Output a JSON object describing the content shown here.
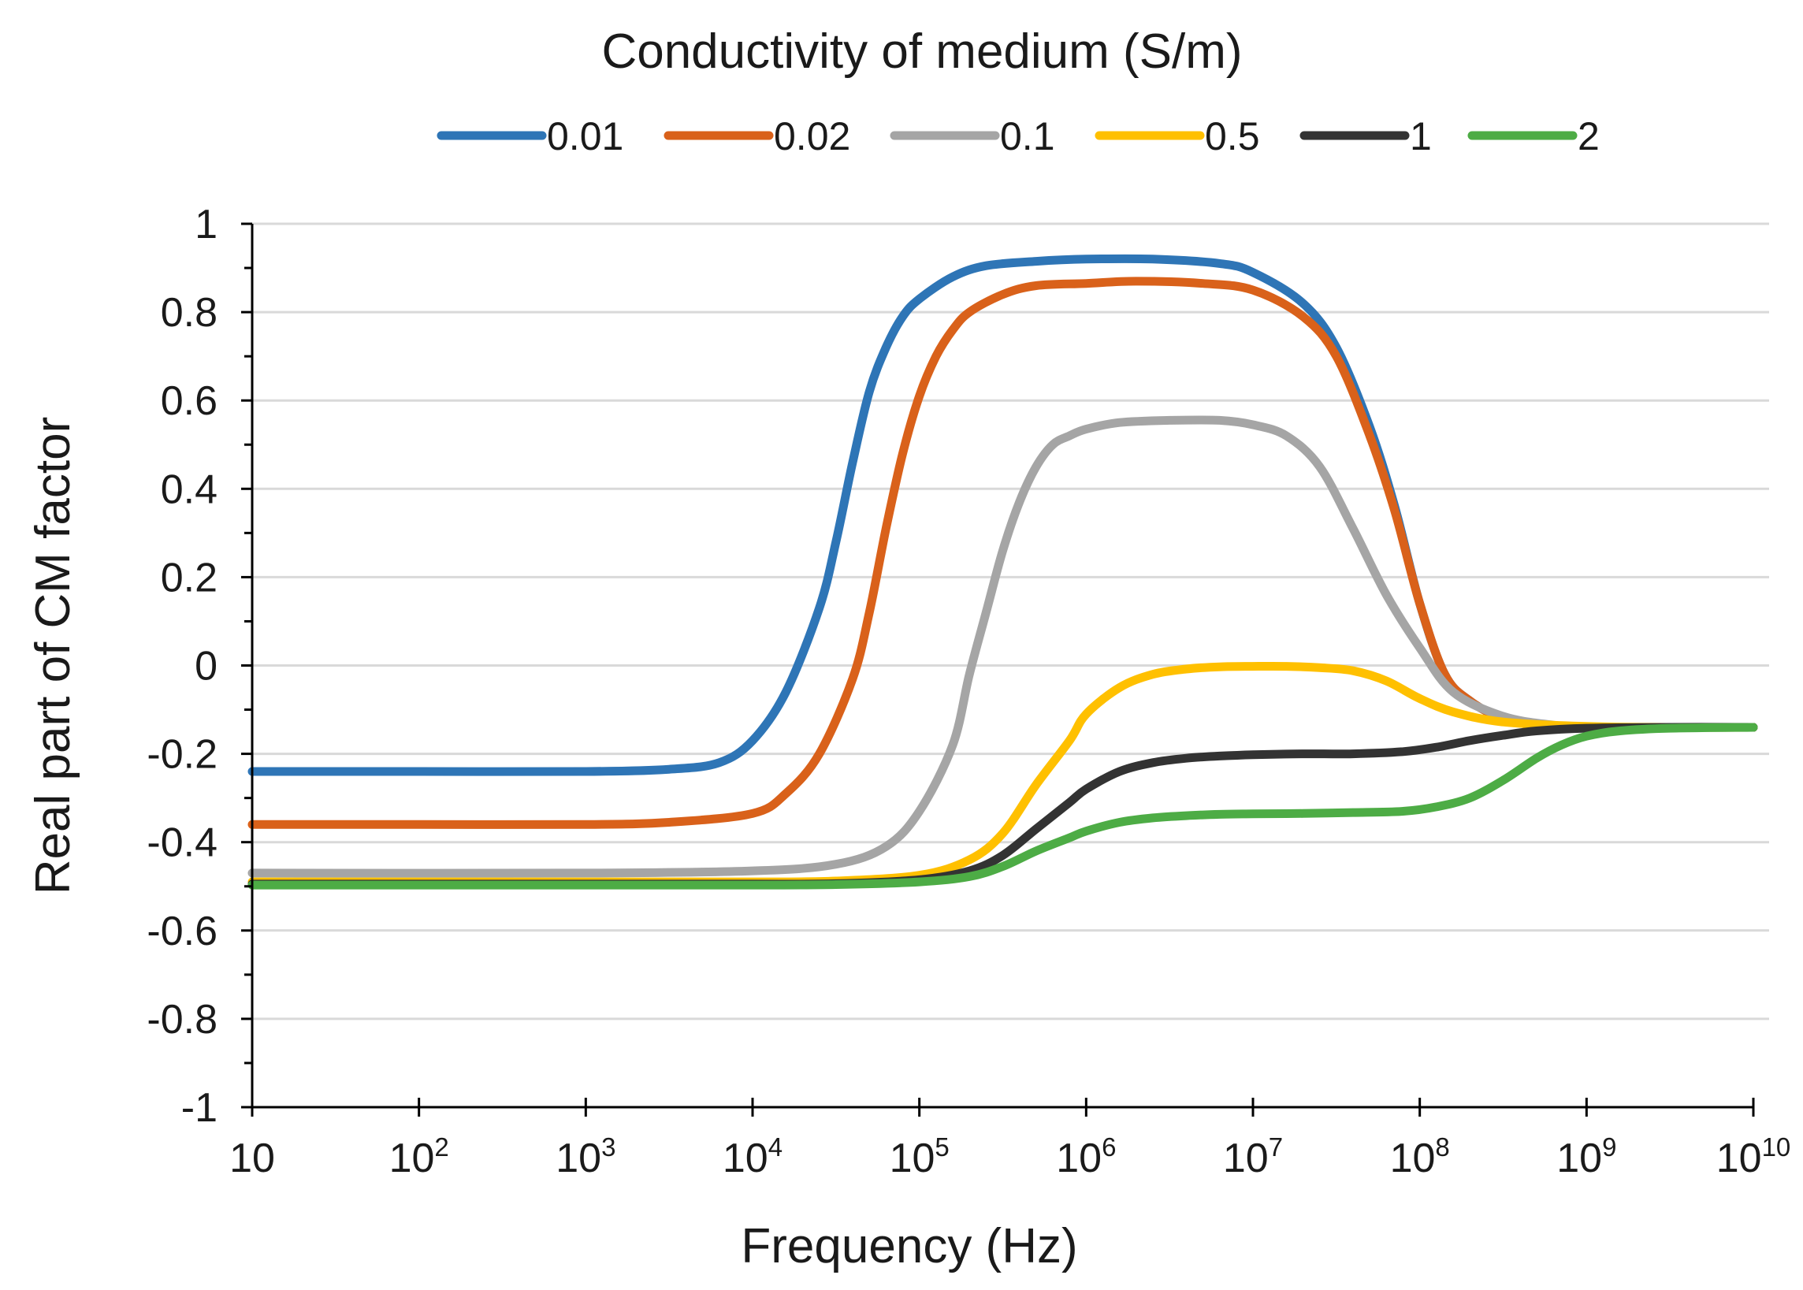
{
  "chart_data": {
    "type": "line",
    "legend_title": "Conductivity of medium (S/m)",
    "xlabel": "Frequency (Hz)",
    "ylabel": "Real part of CM factor",
    "x_scale": "log",
    "xlim_log10": [
      1,
      10
    ],
    "ylim": [
      -1,
      1
    ],
    "x_ticks": [
      {
        "base": "10",
        "exp": ""
      },
      {
        "base": "10",
        "exp": "2"
      },
      {
        "base": "10",
        "exp": "3"
      },
      {
        "base": "10",
        "exp": "4"
      },
      {
        "base": "10",
        "exp": "5"
      },
      {
        "base": "10",
        "exp": "6"
      },
      {
        "base": "10",
        "exp": "7"
      },
      {
        "base": "10",
        "exp": "8"
      },
      {
        "base": "10",
        "exp": "9"
      },
      {
        "base": "10",
        "exp": "10"
      }
    ],
    "y_ticks": [
      "1",
      "0.8",
      "0.6",
      "0.4",
      "0.2",
      "0",
      "-0.2",
      "-0.4",
      "-0.6",
      "-0.8",
      "-1"
    ],
    "y_tick_values": [
      1,
      0.8,
      0.6,
      0.4,
      0.2,
      0,
      -0.2,
      -0.4,
      -0.6,
      -0.8,
      -1
    ],
    "grid": "horizontal",
    "legend_position": "top",
    "series": [
      {
        "name": "0.01",
        "color": "#2E75B6",
        "log10_x": [
          1,
          2,
          3,
          3.5,
          3.8,
          4,
          4.2,
          4.4,
          4.5,
          4.6,
          4.7,
          4.8,
          4.9,
          5,
          5.2,
          5.4,
          5.7,
          6,
          6.4,
          6.8,
          7,
          7.3,
          7.5,
          7.7,
          7.85,
          8,
          8.15,
          8.3,
          8.5,
          8.7,
          9,
          9.5,
          10
        ],
        "values": [
          -0.24,
          -0.24,
          -0.24,
          -0.235,
          -0.22,
          -0.17,
          -0.06,
          0.13,
          0.28,
          0.46,
          0.62,
          0.72,
          0.79,
          0.83,
          0.88,
          0.905,
          0.915,
          0.92,
          0.92,
          0.91,
          0.89,
          0.82,
          0.72,
          0.54,
          0.36,
          0.14,
          -0.02,
          -0.08,
          -0.12,
          -0.135,
          -0.14,
          -0.14,
          -0.14
        ]
      },
      {
        "name": "0.02",
        "color": "#D9611A",
        "log10_x": [
          1,
          2,
          3,
          3.5,
          4,
          4.2,
          4.4,
          4.6,
          4.7,
          4.8,
          4.9,
          5,
          5.1,
          5.2,
          5.3,
          5.5,
          5.7,
          6,
          6.3,
          6.7,
          7,
          7.3,
          7.5,
          7.7,
          7.85,
          8,
          8.15,
          8.3,
          8.5,
          8.7,
          9,
          9.5,
          10
        ],
        "values": [
          -0.36,
          -0.36,
          -0.36,
          -0.355,
          -0.335,
          -0.29,
          -0.2,
          -0.03,
          0.12,
          0.31,
          0.48,
          0.61,
          0.7,
          0.76,
          0.8,
          0.84,
          0.86,
          0.865,
          0.87,
          0.865,
          0.85,
          0.79,
          0.7,
          0.52,
          0.35,
          0.14,
          -0.02,
          -0.08,
          -0.12,
          -0.135,
          -0.14,
          -0.14,
          -0.14
        ]
      },
      {
        "name": "0.1",
        "color": "#A5A5A5",
        "log10_x": [
          1,
          3,
          4,
          4.5,
          4.8,
          5,
          5.2,
          5.3,
          5.4,
          5.5,
          5.6,
          5.7,
          5.8,
          5.9,
          6,
          6.2,
          6.5,
          6.8,
          7,
          7.2,
          7.4,
          7.6,
          7.8,
          8,
          8.2,
          8.5,
          8.8,
          9,
          9.5,
          10
        ],
        "values": [
          -0.47,
          -0.47,
          -0.465,
          -0.45,
          -0.41,
          -0.33,
          -0.18,
          -0.02,
          0.12,
          0.26,
          0.37,
          0.45,
          0.5,
          0.52,
          0.535,
          0.55,
          0.555,
          0.555,
          0.545,
          0.52,
          0.45,
          0.31,
          0.16,
          0.04,
          -0.06,
          -0.115,
          -0.135,
          -0.14,
          -0.14,
          -0.14
        ]
      },
      {
        "name": "0.5",
        "color": "#FFC000",
        "log10_x": [
          1,
          3,
          4,
          4.5,
          5,
          5.3,
          5.5,
          5.7,
          5.9,
          6,
          6.2,
          6.4,
          6.6,
          6.8,
          7,
          7.2,
          7.4,
          7.6,
          7.8,
          8,
          8.2,
          8.5,
          9,
          9.5,
          10
        ],
        "values": [
          -0.49,
          -0.49,
          -0.49,
          -0.488,
          -0.475,
          -0.44,
          -0.38,
          -0.27,
          -0.17,
          -0.11,
          -0.05,
          -0.02,
          -0.008,
          -0.003,
          -0.002,
          -0.002,
          -0.005,
          -0.012,
          -0.035,
          -0.075,
          -0.105,
          -0.128,
          -0.138,
          -0.14,
          -0.14
        ]
      },
      {
        "name": "1",
        "color": "#333333",
        "log10_x": [
          1,
          3,
          4,
          4.5,
          5,
          5.3,
          5.5,
          5.7,
          5.9,
          6,
          6.2,
          6.4,
          6.6,
          6.8,
          7,
          7.3,
          7.6,
          7.9,
          8.1,
          8.3,
          8.5,
          8.7,
          9,
          9.5,
          10
        ],
        "values": [
          -0.495,
          -0.495,
          -0.495,
          -0.494,
          -0.485,
          -0.465,
          -0.43,
          -0.37,
          -0.31,
          -0.28,
          -0.24,
          -0.22,
          -0.21,
          -0.205,
          -0.202,
          -0.2,
          -0.2,
          -0.195,
          -0.185,
          -0.17,
          -0.158,
          -0.148,
          -0.142,
          -0.14,
          -0.14
        ]
      },
      {
        "name": "2",
        "color": "#4DAC45",
        "log10_x": [
          1,
          3,
          4,
          4.5,
          5,
          5.3,
          5.5,
          5.7,
          5.9,
          6,
          6.2,
          6.4,
          6.6,
          6.8,
          7,
          7.3,
          7.6,
          7.9,
          8.1,
          8.3,
          8.5,
          8.7,
          8.85,
          9,
          9.2,
          9.5,
          10
        ],
        "values": [
          -0.497,
          -0.497,
          -0.497,
          -0.496,
          -0.49,
          -0.478,
          -0.455,
          -0.42,
          -0.39,
          -0.375,
          -0.355,
          -0.345,
          -0.34,
          -0.337,
          -0.336,
          -0.335,
          -0.333,
          -0.33,
          -0.32,
          -0.3,
          -0.26,
          -0.21,
          -0.18,
          -0.16,
          -0.148,
          -0.142,
          -0.14
        ]
      }
    ]
  }
}
